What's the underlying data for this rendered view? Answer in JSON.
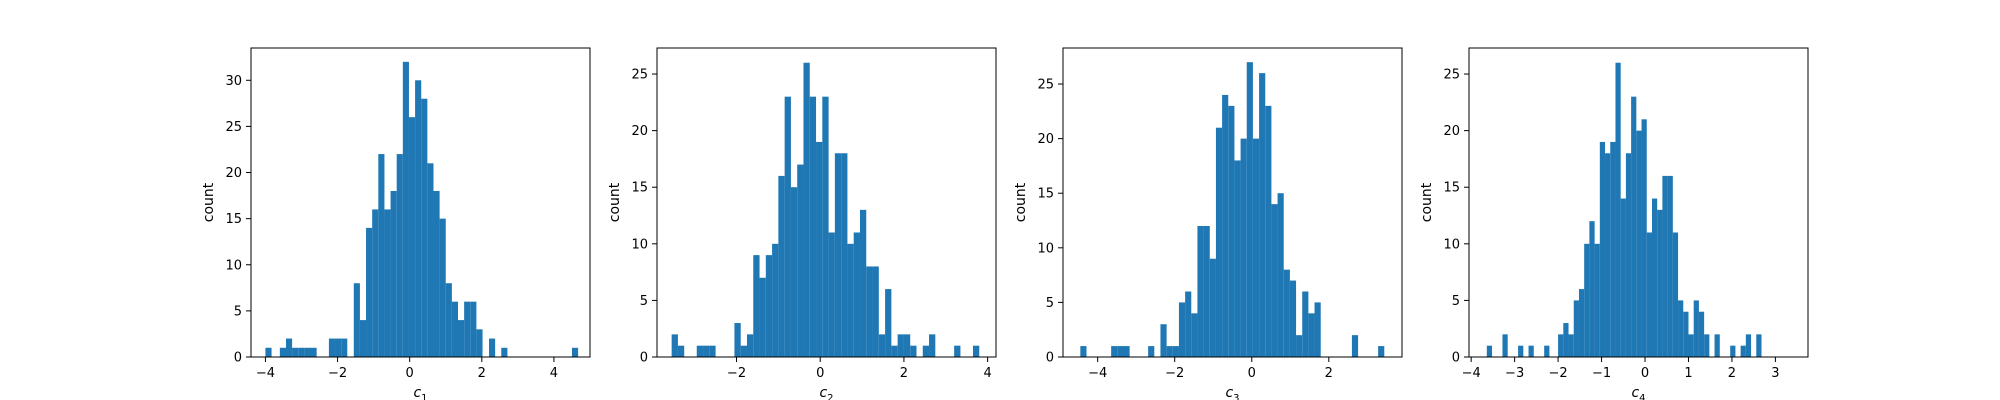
{
  "figure": {
    "bar_color": "#1f77b4",
    "axes_color": "#000000",
    "background": "#ffffff"
  },
  "chart_data": [
    {
      "type": "bar",
      "subtype": "histogram",
      "xlabel": "c",
      "xlabel_subscript": "1",
      "ylabel": "count",
      "xlim": [
        -4.4,
        5.0
      ],
      "ylim": [
        0,
        33.5
      ],
      "xticks": [
        -4,
        -2,
        0,
        2,
        4
      ],
      "yticks": [
        0,
        5,
        10,
        15,
        20,
        25,
        30
      ],
      "bin_width": 0.17,
      "bins": [
        {
          "x": -4.0,
          "count": 1
        },
        {
          "x": -3.6,
          "count": 1
        },
        {
          "x": -3.43,
          "count": 2
        },
        {
          "x": -3.26,
          "count": 1
        },
        {
          "x": -3.09,
          "count": 1
        },
        {
          "x": -2.92,
          "count": 1
        },
        {
          "x": -2.75,
          "count": 1
        },
        {
          "x": -2.24,
          "count": 2
        },
        {
          "x": -2.07,
          "count": 2
        },
        {
          "x": -1.9,
          "count": 2
        },
        {
          "x": -1.55,
          "count": 8
        },
        {
          "x": -1.38,
          "count": 4
        },
        {
          "x": -1.21,
          "count": 14
        },
        {
          "x": -1.04,
          "count": 16
        },
        {
          "x": -0.87,
          "count": 22
        },
        {
          "x": -0.7,
          "count": 16
        },
        {
          "x": -0.53,
          "count": 18
        },
        {
          "x": -0.36,
          "count": 22
        },
        {
          "x": -0.19,
          "count": 32
        },
        {
          "x": -0.02,
          "count": 26
        },
        {
          "x": 0.15,
          "count": 30
        },
        {
          "x": 0.32,
          "count": 28
        },
        {
          "x": 0.49,
          "count": 21
        },
        {
          "x": 0.66,
          "count": 18
        },
        {
          "x": 0.83,
          "count": 15
        },
        {
          "x": 1.0,
          "count": 8
        },
        {
          "x": 1.17,
          "count": 6
        },
        {
          "x": 1.34,
          "count": 4
        },
        {
          "x": 1.51,
          "count": 6
        },
        {
          "x": 1.68,
          "count": 6
        },
        {
          "x": 1.85,
          "count": 3
        },
        {
          "x": 2.2,
          "count": 2
        },
        {
          "x": 2.54,
          "count": 1
        },
        {
          "x": 4.5,
          "count": 1
        }
      ]
    },
    {
      "type": "bar",
      "subtype": "histogram",
      "xlabel": "c",
      "xlabel_subscript": "2",
      "ylabel": "count",
      "xlim": [
        -3.9,
        4.2
      ],
      "ylim": [
        0,
        27.3
      ],
      "xticks": [
        -2,
        0,
        2,
        4
      ],
      "yticks": [
        0,
        5,
        10,
        15,
        20,
        25
      ],
      "bin_width": 0.15,
      "bins": [
        {
          "x": -3.55,
          "count": 2
        },
        {
          "x": -3.4,
          "count": 1
        },
        {
          "x": -2.95,
          "count": 1
        },
        {
          "x": -2.8,
          "count": 1
        },
        {
          "x": -2.65,
          "count": 1
        },
        {
          "x": -2.05,
          "count": 3
        },
        {
          "x": -1.9,
          "count": 1
        },
        {
          "x": -1.75,
          "count": 2
        },
        {
          "x": -1.6,
          "count": 9
        },
        {
          "x": -1.45,
          "count": 7
        },
        {
          "x": -1.3,
          "count": 9
        },
        {
          "x": -1.15,
          "count": 10
        },
        {
          "x": -1.0,
          "count": 16
        },
        {
          "x": -0.85,
          "count": 23
        },
        {
          "x": -0.7,
          "count": 15
        },
        {
          "x": -0.55,
          "count": 17
        },
        {
          "x": -0.4,
          "count": 26
        },
        {
          "x": -0.25,
          "count": 23
        },
        {
          "x": -0.1,
          "count": 19
        },
        {
          "x": 0.05,
          "count": 23
        },
        {
          "x": 0.2,
          "count": 11
        },
        {
          "x": 0.35,
          "count": 18
        },
        {
          "x": 0.5,
          "count": 18
        },
        {
          "x": 0.65,
          "count": 10
        },
        {
          "x": 0.8,
          "count": 11
        },
        {
          "x": 0.95,
          "count": 13
        },
        {
          "x": 1.1,
          "count": 8
        },
        {
          "x": 1.25,
          "count": 8
        },
        {
          "x": 1.4,
          "count": 2
        },
        {
          "x": 1.55,
          "count": 6
        },
        {
          "x": 1.7,
          "count": 1
        },
        {
          "x": 1.85,
          "count": 2
        },
        {
          "x": 2.0,
          "count": 2
        },
        {
          "x": 2.15,
          "count": 1
        },
        {
          "x": 2.45,
          "count": 1
        },
        {
          "x": 2.6,
          "count": 2
        },
        {
          "x": 3.2,
          "count": 1
        },
        {
          "x": 3.65,
          "count": 1
        }
      ]
    },
    {
      "type": "bar",
      "subtype": "histogram",
      "xlabel": "c",
      "xlabel_subscript": "3",
      "ylabel": "count",
      "xlim": [
        -4.9,
        3.9
      ],
      "ylim": [
        0,
        28.3
      ],
      "xticks": [
        -4,
        -2,
        0,
        2
      ],
      "yticks": [
        0,
        5,
        10,
        15,
        20,
        25
      ],
      "bin_width": 0.16,
      "bins": [
        {
          "x": -4.45,
          "count": 1
        },
        {
          "x": -3.65,
          "count": 1
        },
        {
          "x": -3.49,
          "count": 1
        },
        {
          "x": -3.33,
          "count": 1
        },
        {
          "x": -2.69,
          "count": 1
        },
        {
          "x": -2.37,
          "count": 3
        },
        {
          "x": -2.21,
          "count": 1
        },
        {
          "x": -2.05,
          "count": 1
        },
        {
          "x": -1.89,
          "count": 5
        },
        {
          "x": -1.73,
          "count": 6
        },
        {
          "x": -1.57,
          "count": 4
        },
        {
          "x": -1.41,
          "count": 12
        },
        {
          "x": -1.25,
          "count": 12
        },
        {
          "x": -1.09,
          "count": 9
        },
        {
          "x": -0.93,
          "count": 21
        },
        {
          "x": -0.77,
          "count": 24
        },
        {
          "x": -0.61,
          "count": 23
        },
        {
          "x": -0.45,
          "count": 18
        },
        {
          "x": -0.29,
          "count": 20
        },
        {
          "x": -0.13,
          "count": 27
        },
        {
          "x": 0.03,
          "count": 20
        },
        {
          "x": 0.19,
          "count": 26
        },
        {
          "x": 0.35,
          "count": 23
        },
        {
          "x": 0.51,
          "count": 14
        },
        {
          "x": 0.67,
          "count": 15
        },
        {
          "x": 0.83,
          "count": 8
        },
        {
          "x": 0.99,
          "count": 7
        },
        {
          "x": 1.15,
          "count": 2
        },
        {
          "x": 1.31,
          "count": 6
        },
        {
          "x": 1.47,
          "count": 4
        },
        {
          "x": 1.63,
          "count": 5
        },
        {
          "x": 2.6,
          "count": 2
        },
        {
          "x": 3.28,
          "count": 1
        }
      ]
    },
    {
      "type": "bar",
      "subtype": "histogram",
      "xlabel": "c",
      "xlabel_subscript": "4",
      "ylabel": "count",
      "xlim": [
        -4.05,
        3.75
      ],
      "ylim": [
        0,
        27.3
      ],
      "xticks": [
        -4,
        -3,
        -2,
        -1,
        0,
        1,
        2,
        3
      ],
      "yticks": [
        0,
        5,
        10,
        15,
        20,
        25
      ],
      "bin_width": 0.12,
      "bins": [
        {
          "x": -3.64,
          "count": 1
        },
        {
          "x": -3.28,
          "count": 2
        },
        {
          "x": -2.92,
          "count": 1
        },
        {
          "x": -2.68,
          "count": 1
        },
        {
          "x": -2.32,
          "count": 1
        },
        {
          "x": -2.0,
          "count": 2
        },
        {
          "x": -1.88,
          "count": 3
        },
        {
          "x": -1.76,
          "count": 2
        },
        {
          "x": -1.64,
          "count": 5
        },
        {
          "x": -1.52,
          "count": 6
        },
        {
          "x": -1.4,
          "count": 10
        },
        {
          "x": -1.28,
          "count": 12
        },
        {
          "x": -1.16,
          "count": 10
        },
        {
          "x": -1.04,
          "count": 19
        },
        {
          "x": -0.92,
          "count": 18
        },
        {
          "x": -0.8,
          "count": 19
        },
        {
          "x": -0.68,
          "count": 26
        },
        {
          "x": -0.56,
          "count": 14
        },
        {
          "x": -0.44,
          "count": 18
        },
        {
          "x": -0.32,
          "count": 23
        },
        {
          "x": -0.2,
          "count": 20
        },
        {
          "x": -0.08,
          "count": 21
        },
        {
          "x": 0.04,
          "count": 11
        },
        {
          "x": 0.16,
          "count": 14
        },
        {
          "x": 0.28,
          "count": 13
        },
        {
          "x": 0.4,
          "count": 16
        },
        {
          "x": 0.52,
          "count": 16
        },
        {
          "x": 0.64,
          "count": 11
        },
        {
          "x": 0.76,
          "count": 5
        },
        {
          "x": 0.88,
          "count": 4
        },
        {
          "x": 1.0,
          "count": 2
        },
        {
          "x": 1.12,
          "count": 5
        },
        {
          "x": 1.24,
          "count": 4
        },
        {
          "x": 1.36,
          "count": 2
        },
        {
          "x": 1.6,
          "count": 2
        },
        {
          "x": 1.96,
          "count": 1
        },
        {
          "x": 2.2,
          "count": 1
        },
        {
          "x": 2.32,
          "count": 2
        },
        {
          "x": 2.56,
          "count": 2
        }
      ]
    }
  ]
}
